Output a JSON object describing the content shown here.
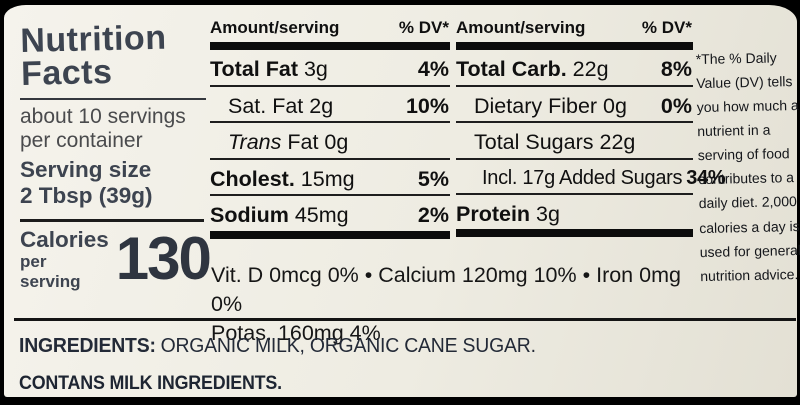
{
  "colors": {
    "frame": "#000000",
    "label_bg": "#efede4",
    "ink": "#121212",
    "panel_ink": "#3d4450"
  },
  "left_panel": {
    "title_line1": "Nutrition",
    "title_line2": "Facts",
    "servings_line1": "about 10 servings",
    "servings_line2": "per container",
    "serving_size_label": "Serving size",
    "serving_size_value": "2 Tbsp (39g)",
    "calories_label": "Calories",
    "calories_sublabel": "per serving",
    "calories_value": "130"
  },
  "nutrient_columns": [
    {
      "header": {
        "amount_label": "Amount/serving",
        "dv_label": "% DV*"
      },
      "rows": [
        {
          "label_bold": "Total Fat",
          "label_rest": " 3g",
          "dv": "4%"
        },
        {
          "label_rest": "Sat. Fat 2g",
          "dv": "10%"
        },
        {
          "label_italic": "Trans",
          "label_rest": " Fat 0g",
          "dv": ""
        },
        {
          "label_bold": "Cholest.",
          "label_rest": " 15mg",
          "dv": "5%"
        },
        {
          "label_bold": "Sodium",
          "label_rest": " 45mg",
          "dv": "2%"
        }
      ]
    },
    {
      "header": {
        "amount_label": "Amount/serving",
        "dv_label": "% DV*"
      },
      "rows": [
        {
          "label_bold": "Total Carb.",
          "label_rest": " 22g",
          "dv": "8%"
        },
        {
          "label_rest": "Dietary Fiber 0g",
          "dv": "0%"
        },
        {
          "label_rest": "Total Sugars 22g",
          "dv": ""
        },
        {
          "label_rest": "Incl. 17g Added Sugars",
          "dv": "34%"
        },
        {
          "label_bold": "Protein",
          "label_rest": " 3g",
          "dv": ""
        }
      ]
    }
  ],
  "micronutrients": {
    "line1": "Vit. D 0mcg 0% • Calcium 120mg 10% • Iron 0mg 0%",
    "line2": "Potas. 160mg 4%"
  },
  "footnote_text": "*The % Daily Value (DV) tells you how much a nutrient in a serving of food contributes to a daily diet. 2,000 calories a day is used for general nutrition advice.",
  "ingredients": {
    "label": "INGREDIENTS:",
    "text": "ORGANIC MILK, ORGANIC CANE SUGAR."
  },
  "allergen_statement": "CONTANS MILK INGREDIENTS."
}
